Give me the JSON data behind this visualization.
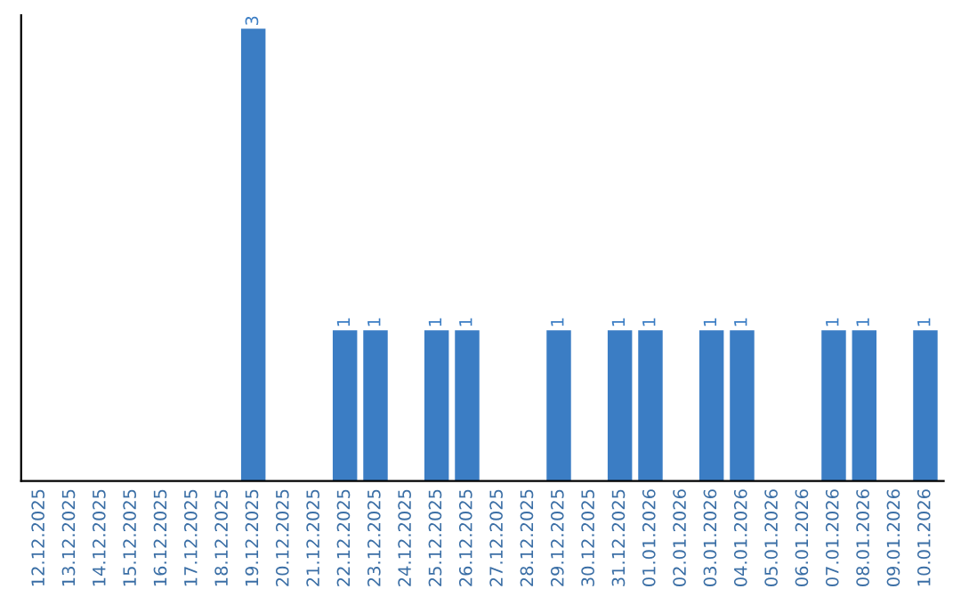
{
  "chart_data": {
    "type": "bar",
    "categories": [
      "12.12.2025",
      "13.12.2025",
      "14.12.2025",
      "15.12.2025",
      "16.12.2025",
      "17.12.2025",
      "18.12.2025",
      "19.12.2025",
      "20.12.2025",
      "21.12.2025",
      "22.12.2025",
      "23.12.2025",
      "24.12.2025",
      "25.12.2025",
      "26.12.2025",
      "27.12.2025",
      "28.12.2025",
      "29.12.2025",
      "30.12.2025",
      "31.12.2025",
      "01.01.2026",
      "02.01.2026",
      "03.01.2026",
      "04.01.2026",
      "05.01.2026",
      "06.01.2026",
      "07.01.2026",
      "08.01.2026",
      "09.01.2026",
      "10.01.2026"
    ],
    "values": [
      0,
      0,
      0,
      0,
      0,
      0,
      0,
      3,
      0,
      0,
      1,
      1,
      0,
      1,
      1,
      0,
      0,
      1,
      0,
      1,
      1,
      0,
      1,
      1,
      0,
      0,
      1,
      1,
      0,
      1
    ],
    "value_labels": [
      null,
      null,
      null,
      null,
      null,
      null,
      null,
      "3",
      null,
      null,
      "1",
      "1",
      null,
      "1",
      "1",
      null,
      null,
      "1",
      null,
      "1",
      "1",
      null,
      "1",
      "1",
      null,
      null,
      "1",
      "1",
      null,
      "1"
    ],
    "color": "#3b7dc4",
    "tick_labels": "x",
    "grid": false,
    "legend": false
  }
}
